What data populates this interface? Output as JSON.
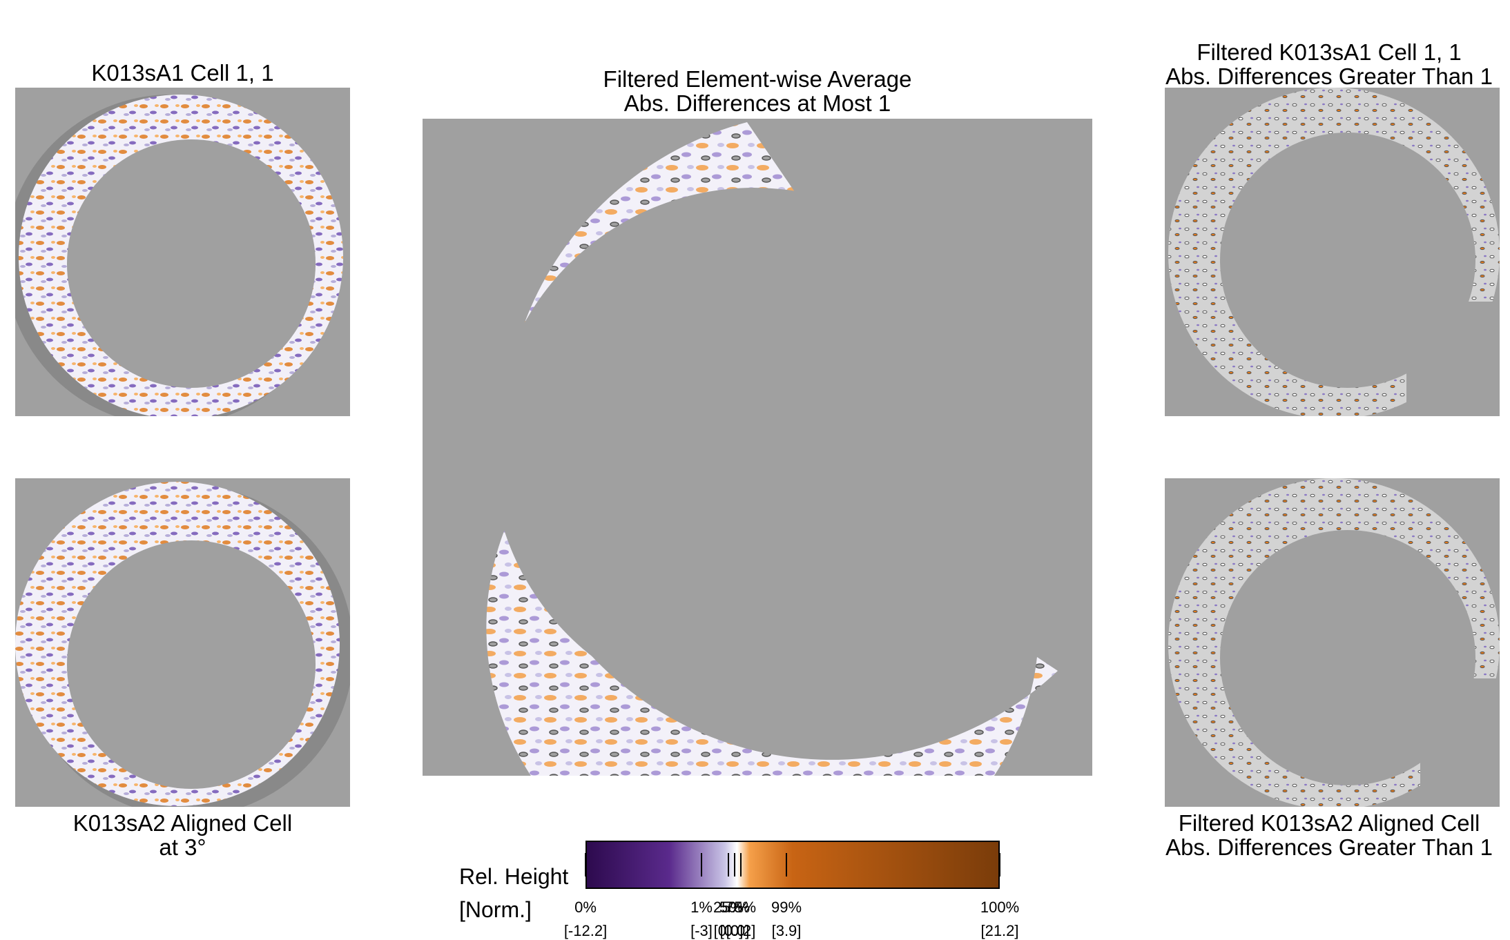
{
  "panels": {
    "top_left_title": "K013sA1 Cell 1, 1",
    "bottom_left_title_1": "K013sA2 Aligned Cell",
    "bottom_left_title_2": "at 3°",
    "center_title_1": "Filtered Element-wise Average",
    "center_title_2": "Abs. Differences at Most 1",
    "top_right_title_1": "Filtered K013sA1 Cell 1, 1",
    "top_right_title_2": "Abs. Differences Greater Than 1",
    "bottom_right_title_1": "Filtered K013sA2 Aligned Cell",
    "bottom_right_title_2": "Abs. Differences Greater Than 1"
  },
  "colorbar": {
    "label_1": "Rel. Height",
    "label_2": "[Norm.]",
    "ticks": [
      {
        "pct": "0%",
        "value": "[-12.2]",
        "pos": 0.0
      },
      {
        "pct": "1%",
        "value": "[-3]",
        "pos": 0.28
      },
      {
        "pct": "25%",
        "value": "[0.0]",
        "pos": 0.345
      },
      {
        "pct": "50%",
        "value": "[0.0]",
        "pos": 0.36
      },
      {
        "pct": "75%",
        "value": "[0.2]",
        "pos": 0.375
      },
      {
        "pct": "99%",
        "value": "[3.9]",
        "pos": 0.485
      },
      {
        "pct": "100%",
        "value": "[21.2]",
        "pos": 1.0
      }
    ],
    "colors": [
      "#2d0a4e",
      "#5a2a8c",
      "#c9c4e6",
      "#ffffff",
      "#f5a04a",
      "#c86414",
      "#7a3c0a"
    ]
  }
}
